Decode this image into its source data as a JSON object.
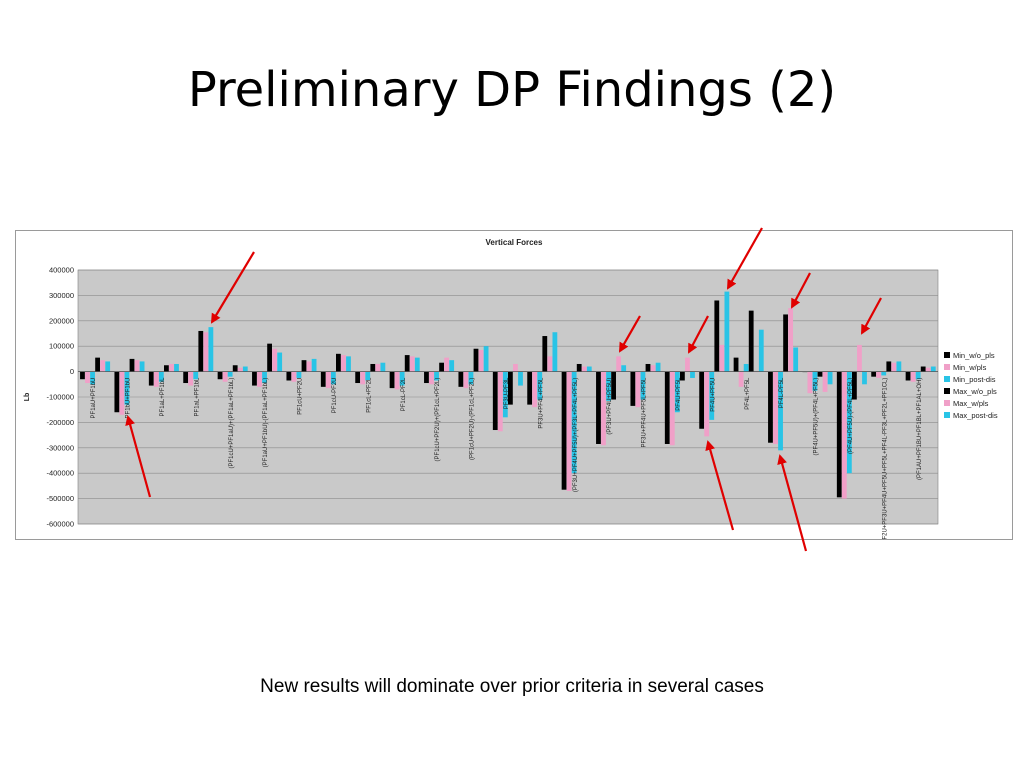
{
  "slide": {
    "title": "Preliminary DP Findings (2)",
    "caption": "New results will dominate over prior criteria in several cases"
  },
  "colors": {
    "Min_w/o_pls": "#000000",
    "Min_w/pls": "#f0a0c8",
    "Min_post-dis": "#29c4e6",
    "Max_w/o_pls": "#000000",
    "Max_w/pls": "#f0a0c8",
    "Max_post-dis": "#29c4e6",
    "arrow": "#e00000"
  },
  "chart_data": {
    "type": "bar",
    "title": "Vertical Forces",
    "ylabel": "Lb",
    "ylim": [
      -600000,
      400000
    ],
    "yticks": [
      400000,
      300000,
      200000,
      100000,
      0,
      -100000,
      -200000,
      -300000,
      -400000,
      -500000,
      -600000
    ],
    "grid": true,
    "legend": "right",
    "categories": [
      "PF1aU+PF1bU",
      "PF1bU+PF1bU",
      "PF1aL+PF1bL",
      "PF1aL+PF1bL",
      "(PF1cU+PF1aU)+(PF1aL+PF1bL)",
      "(PF1aU+PF1bU)-(PF1aL+PF1bL)",
      "PF1cU+PF2U",
      "PF1cU-PF2U",
      "PF1cL+PF2L",
      "PF1cL-PF2L",
      "(PF1cU+PF2U)+(PF1cL+PF2L)",
      "(PF1cU+PF2U)-(PF1cL+PF2L)",
      "PF3U-PF3L",
      "PF3U+PF4L+PF5L",
      "(PF3U+PF4U+PF5U)+(PF3L+PF4L+PF5L)",
      "(PF3U+PF4U+PF5U)",
      "PF3U+PF4U+PF5L+PF5L",
      "PF4U+PF5L",
      "PF4U+PF5U",
      "PF4L+PF5L",
      "PF4L-PF5L",
      "(PF4U+PF5U)+(PF4L+PF5L)",
      "(PF4U+PF5U)-(PF4L+PF5L)",
      "(PF1CU+PF2U+PF3U+PF4U+PF5U+PF5L+PF4L-PF3L+PF2L+PF1CL)",
      "(PF1AU+PF1BU+PF1BL+PF1AL+OH)"
    ],
    "series": [
      {
        "name": "Min_w/o_pls",
        "values": [
          -30000,
          -160000,
          -55000,
          -45000,
          -30000,
          -55000,
          -35000,
          -60000,
          -45000,
          -65000,
          -45000,
          -60000,
          -230000,
          -130000,
          -465000,
          -285000,
          -135000,
          -285000,
          -225000,
          55000,
          -280000,
          0,
          -495000,
          -20000,
          -35000
        ]
      },
      {
        "name": "Min_w/pls",
        "values": [
          -45000,
          -170000,
          -60000,
          -55000,
          -40000,
          -60000,
          -40000,
          -65000,
          -50000,
          -70000,
          -50000,
          -65000,
          -235000,
          -140000,
          -470000,
          -290000,
          -140000,
          -290000,
          -255000,
          -60000,
          -285000,
          -85000,
          -500000,
          -25000,
          -40000
        ]
      },
      {
        "name": "Min_post-dis",
        "values": [
          -50000,
          -130000,
          -40000,
          -30000,
          -20000,
          -45000,
          -25000,
          -50000,
          -35000,
          -55000,
          -35000,
          -50000,
          -180000,
          -110000,
          -400000,
          -115000,
          -110000,
          -160000,
          -190000,
          30000,
          -310000,
          -75000,
          -400000,
          -15000,
          -30000
        ]
      },
      {
        "name": "Max_w/o_pls",
        "values": [
          55000,
          50000,
          25000,
          160000,
          25000,
          110000,
          45000,
          70000,
          30000,
          65000,
          35000,
          90000,
          -130000,
          140000,
          30000,
          -110000,
          30000,
          -35000,
          280000,
          240000,
          225000,
          -20000,
          -110000,
          40000,
          20000
        ]
      },
      {
        "name": "Max_w/pls",
        "values": [
          45000,
          45000,
          30000,
          155000,
          15000,
          90000,
          40000,
          65000,
          30000,
          60000,
          55000,
          85000,
          30000,
          60000,
          20000,
          60000,
          25000,
          55000,
          105000,
          0,
          250000,
          -80000,
          105000,
          35000,
          15000
        ]
      },
      {
        "name": "Max_post-dis",
        "values": [
          40000,
          40000,
          30000,
          175000,
          20000,
          75000,
          50000,
          60000,
          35000,
          55000,
          45000,
          100000,
          -55000,
          155000,
          20000,
          25000,
          35000,
          -25000,
          315000,
          165000,
          95000,
          -50000,
          -50000,
          40000,
          20000
        ]
      }
    ]
  }
}
